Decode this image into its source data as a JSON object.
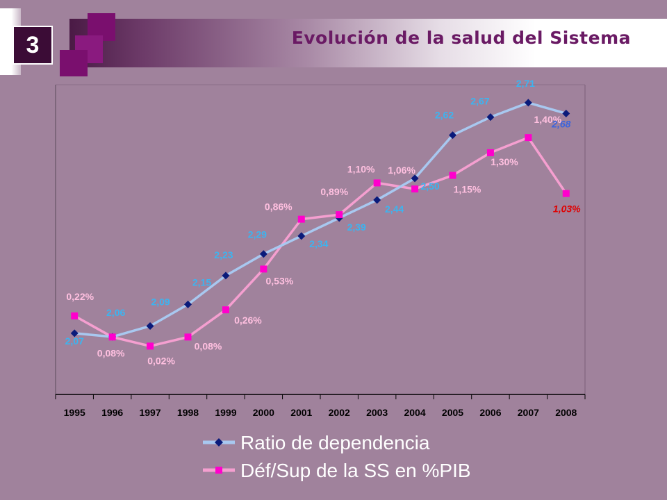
{
  "slide": {
    "number": "3",
    "title": "Evolución de la salud del Sistema"
  },
  "chart_data": {
    "type": "line",
    "categories": [
      "1995",
      "1996",
      "1997",
      "1998",
      "1999",
      "2000",
      "2001",
      "2002",
      "2003",
      "2004",
      "2005",
      "2006",
      "2007",
      "2008"
    ],
    "ylim": [
      1.9,
      2.76
    ],
    "y2lim": [
      -0.3,
      1.75
    ],
    "grid": false,
    "legend_position": "bottom",
    "series": [
      {
        "name": "Ratio de dependencia",
        "axis": "left",
        "color": "#a8c8f0",
        "marker": "diamond",
        "marker_color": "#0a1a7a",
        "values": [
          2.07,
          2.06,
          2.09,
          2.15,
          2.23,
          2.29,
          2.34,
          2.39,
          2.44,
          2.5,
          2.62,
          2.67,
          2.71,
          2.68
        ],
        "labels": [
          "2,07",
          "2,06",
          "2,09",
          "2,15",
          "2,23",
          "2,29",
          "2,34",
          "2,39",
          "2,44",
          "2,50",
          "2,62",
          "2,67",
          "2,71",
          "2,68"
        ],
        "label_color": "#3cb4f0",
        "last_label_color": "#3c64dc"
      },
      {
        "name": "Déf/Sup de la SS en %PIB",
        "axis": "right",
        "color": "#f59fd0",
        "marker": "square",
        "marker_color": "#ff00cc",
        "values": [
          0.22,
          0.08,
          0.02,
          0.08,
          0.26,
          0.53,
          0.86,
          0.89,
          1.1,
          1.06,
          1.15,
          1.3,
          1.4,
          1.03
        ],
        "labels": [
          "0,22%",
          "0,08%",
          "0,02%",
          "0,08%",
          "0,26%",
          "0,53%",
          "0,86%",
          "0,89%",
          "1,10%",
          "1,06%",
          "1,15%",
          "1,30%",
          "1,40%",
          "1,03%"
        ],
        "label_color": "#ffc0e0",
        "last_label_color": "#e00000"
      }
    ]
  }
}
